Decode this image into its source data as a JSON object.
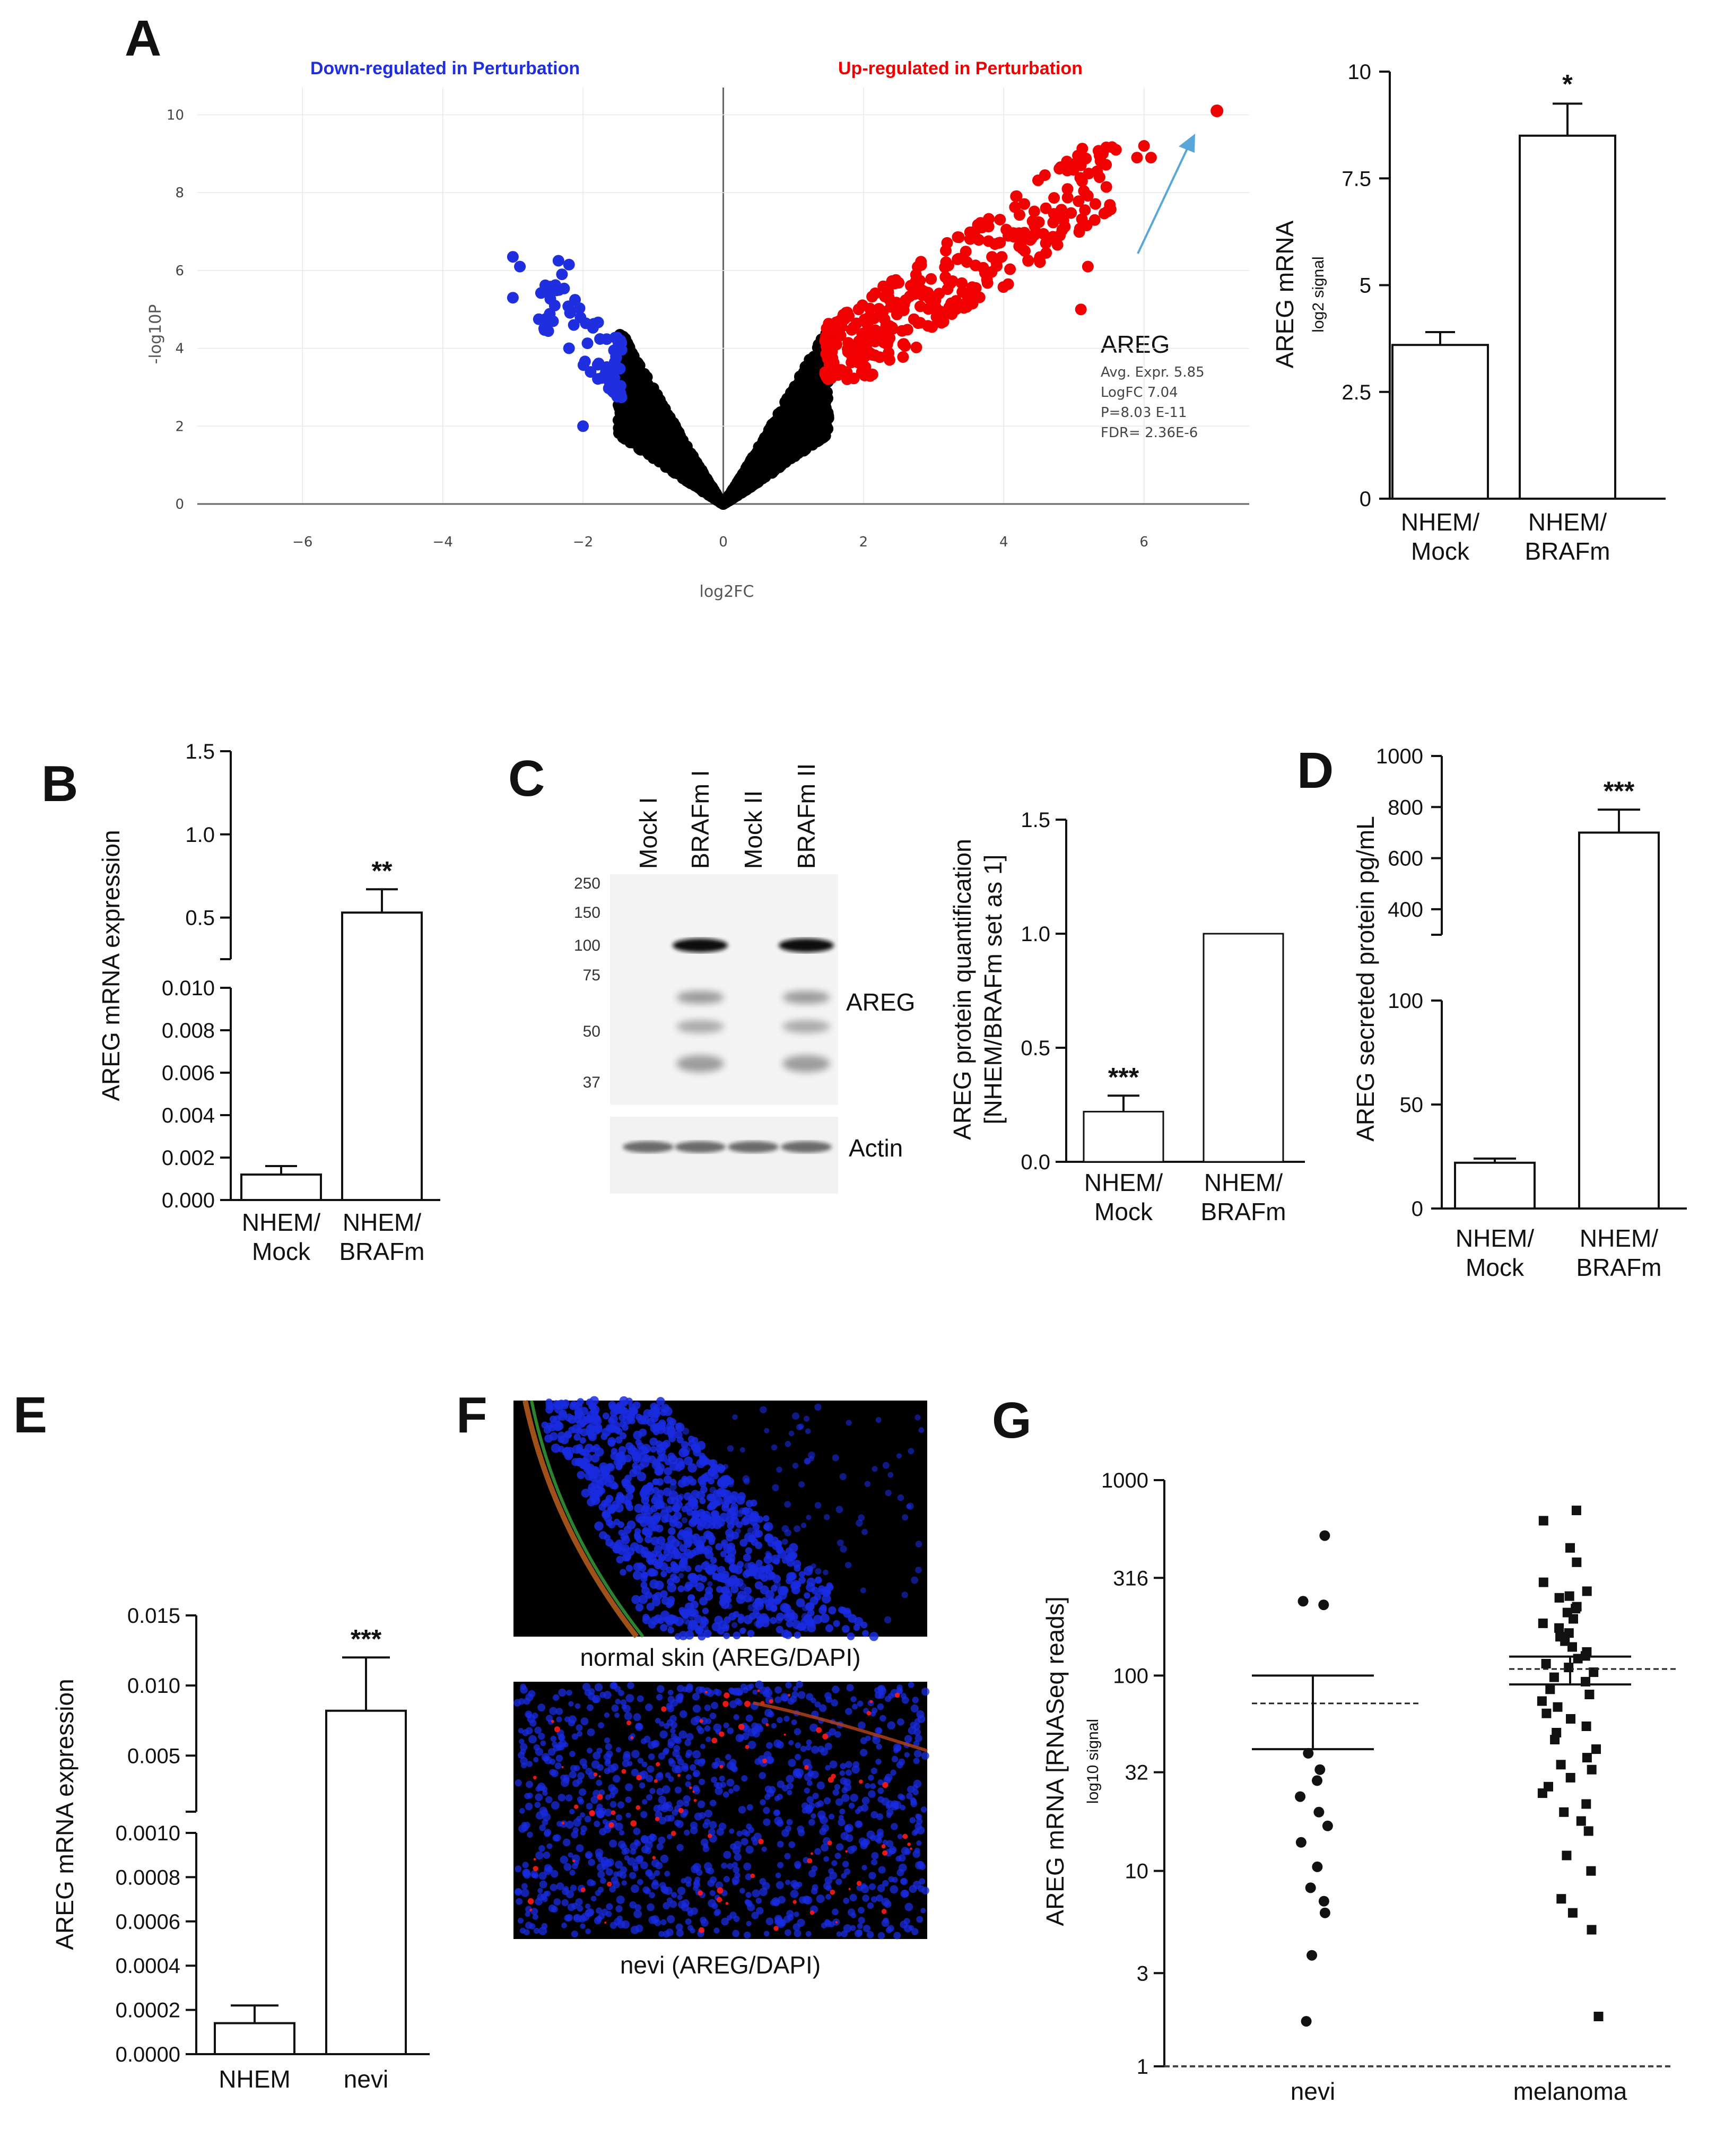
{
  "chart_data": [
    {
      "panel": "A",
      "type": "scatter",
      "subtype": "volcano",
      "xlabel": "log2FC",
      "ylabel": "-log10P",
      "xlim": [
        -7.5,
        7.5
      ],
      "ylim": [
        0,
        10.7
      ],
      "x_ticks": [
        -6,
        -4,
        -2,
        0,
        2,
        4,
        6
      ],
      "y_ticks": [
        0,
        2,
        4,
        6,
        8,
        10
      ],
      "down_label": "Down-regulated in Perturbation",
      "up_label": "Up-regulated in Perturbation",
      "colors": {
        "down": "#1f2fe0",
        "up": "#f00000",
        "neutral": "#000000",
        "arrow": "#59a7d8"
      },
      "highlight": {
        "x": 7.04,
        "y": 10.1
      },
      "annotation": {
        "gene": "AREG",
        "lines": [
          "Avg. Expr. 5.85",
          "LogFC 7.04",
          "P=8.03 E-11",
          "FDR= 2.36E-6"
        ]
      }
    },
    {
      "panel": "A",
      "type": "bar",
      "categories": [
        [
          "NHEM/",
          "Mock"
        ],
        [
          "NHEM/",
          "BRAFm"
        ]
      ],
      "values": [
        3.6,
        8.5
      ],
      "errors": [
        0.3,
        0.75
      ],
      "significance": [
        "",
        "*"
      ],
      "ylabel": "AREG mRNA",
      "ylabel_sub": "log2 signal",
      "ylim": [
        0,
        10
      ],
      "y_ticks": [
        "0",
        "2.5",
        "5",
        "7.5",
        "10"
      ]
    },
    {
      "panel": "B",
      "type": "bar",
      "categories": [
        [
          "NHEM/",
          "Mock"
        ],
        [
          "NHEM/",
          "BRAFm"
        ]
      ],
      "values": [
        0.0012,
        0.53
      ],
      "errors": [
        0.0004,
        0.14
      ],
      "significance": [
        "",
        "**"
      ],
      "ylabel": "AREG mRNA expression",
      "axis_break": true,
      "y_ticks_lower": [
        "0.000",
        "0.002",
        "0.004",
        "0.006",
        "0.008",
        "0.010"
      ],
      "y_ticks_upper": [
        "0.5",
        "1.0",
        "1.5"
      ]
    },
    {
      "panel": "C",
      "type": "bar",
      "categories": [
        [
          "NHEM/",
          "Mock"
        ],
        [
          "NHEM/",
          "BRAFm"
        ]
      ],
      "values": [
        0.22,
        1.0
      ],
      "errors": [
        0.07,
        0.0
      ],
      "significance": [
        "***",
        ""
      ],
      "ylabel": "AREG protein quantification",
      "ylabel_sub": "[NHEM/BRAFm set as 1]",
      "ylim": [
        0,
        1.5
      ],
      "y_ticks": [
        "0.0",
        "0.5",
        "1.0",
        "1.5"
      ]
    },
    {
      "panel": "D",
      "type": "bar",
      "categories": [
        [
          "NHEM/",
          "Mock"
        ],
        [
          "NHEM/",
          "BRAFm"
        ]
      ],
      "values": [
        22,
        700
      ],
      "errors": [
        2,
        90
      ],
      "significance": [
        "",
        "***"
      ],
      "ylabel": "AREG secreted protein pg/mL",
      "axis_break": true,
      "y_ticks_lower": [
        "0",
        "50",
        "100"
      ],
      "y_ticks_upper": [
        "400",
        "600",
        "800",
        "1000"
      ]
    },
    {
      "panel": "E",
      "type": "bar",
      "categories": [
        "NHEM",
        "nevi"
      ],
      "values": [
        0.00014,
        0.0082
      ],
      "errors": [
        8e-05,
        0.0038
      ],
      "significance": [
        "",
        "***"
      ],
      "ylabel": "AREG mRNA expression",
      "axis_break": true,
      "y_ticks_lower": [
        "0.0000",
        "0.0002",
        "0.0004",
        "0.0006",
        "0.0008",
        "0.0010"
      ],
      "y_ticks_upper": [
        "0.005",
        "0.010",
        "0.015"
      ]
    },
    {
      "panel": "G",
      "type": "scatter",
      "scale": "log10",
      "categories": [
        "nevi",
        "melanoma"
      ],
      "ylabel": "AREG mRNA [RNASeq reads]",
      "ylabel_sub": "log10 signal",
      "ylim": [
        1,
        1000
      ],
      "y_ticks": [
        "1",
        "3",
        "10",
        "32",
        "100",
        "316",
        "1000"
      ],
      "series": [
        {
          "name": "nevi",
          "marker": "circle",
          "values": [
            520,
            240,
            230,
            40,
            33,
            29,
            24,
            20,
            17,
            14,
            10.5,
            8.2,
            7.0,
            6.1,
            3.7,
            1.7
          ],
          "mean": 72,
          "sem_upper": 100,
          "sem_lower": 42
        },
        {
          "name": "melanoma",
          "marker": "square",
          "values": [
            700,
            620,
            450,
            380,
            300,
            270,
            255,
            250,
            225,
            220,
            210,
            195,
            185,
            175,
            165,
            158,
            150,
            140,
            132,
            126,
            122,
            115,
            110,
            104,
            98,
            93,
            85,
            80,
            74,
            69,
            64,
            60,
            55,
            51,
            47,
            42,
            38,
            35,
            33,
            30,
            27,
            25,
            22,
            20,
            18,
            16,
            12,
            10,
            7.2,
            6.1,
            5.0,
            1.8
          ],
          "mean": 108,
          "sem_upper": 125,
          "sem_lower": 90
        }
      ]
    }
  ],
  "western": {
    "lanes": [
      "Mock I",
      "BRAFm I",
      "Mock II",
      "BRAFm II"
    ],
    "markers": [
      "250",
      "150",
      "100",
      "75",
      "50",
      "37"
    ],
    "band_labels": [
      "AREG",
      "Actin"
    ]
  },
  "micrographs": {
    "top_caption": "normal skin (AREG/DAPI)",
    "bottom_caption": "nevi (AREG/DAPI)"
  },
  "panel_letters": [
    "A",
    "B",
    "C",
    "D",
    "E",
    "F",
    "G"
  ]
}
